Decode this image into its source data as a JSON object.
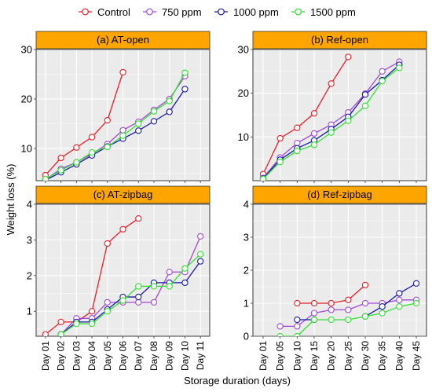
{
  "figure": {
    "xlabel": "Storage duration (days)",
    "ylabel": "Weight loss (%)"
  },
  "legend": {
    "placement": "top",
    "items": [
      {
        "name": "Control",
        "color": "#e8202a"
      },
      {
        "name": "750 ppm",
        "color": "#a24ad6"
      },
      {
        "name": "1000 ppm",
        "color": "#1a1aa8"
      },
      {
        "name": "1500 ppm",
        "color": "#33e033"
      }
    ]
  },
  "chart_data": [
    {
      "type": "line",
      "title": "(a) AT-open",
      "categories": [
        "Day 01",
        "Day 02",
        "Day 03",
        "Day 04",
        "Day 05",
        "Day 06",
        "Day 07",
        "Day 08",
        "Day 09",
        "Day 10",
        "Day 11"
      ],
      "ylim": [
        3.5,
        30
      ],
      "yticks": [
        10,
        20,
        30
      ],
      "series": [
        {
          "name": "Control",
          "values": [
            4.6,
            8.1,
            10.2,
            12.3,
            15.7,
            25.4,
            null,
            null,
            null,
            null,
            null
          ]
        },
        {
          "name": "750 ppm",
          "values": [
            3.7,
            5.9,
            7.2,
            8.9,
            10.9,
            13.7,
            15.4,
            17.8,
            20.0,
            24.6,
            null
          ]
        },
        {
          "name": "1000 ppm",
          "values": [
            3.6,
            5.2,
            6.8,
            8.6,
            10.4,
            12.0,
            13.6,
            15.5,
            17.4,
            22.0,
            null
          ]
        },
        {
          "name": "1500 ppm",
          "values": [
            3.8,
            5.6,
            7.2,
            9.2,
            10.3,
            12.6,
            15.0,
            17.5,
            19.6,
            25.3,
            null
          ]
        }
      ],
      "grid": true
    },
    {
      "type": "line",
      "title": "(b) Ref-open",
      "categories": [
        "Day 01",
        "Day 05",
        "Day 10",
        "Day 15",
        "Day 20",
        "Day 25",
        "Day 30",
        "Day 35",
        "Day 40",
        "Day 45"
      ],
      "ylim": [
        0,
        30
      ],
      "yticks": [
        10,
        20,
        30
      ],
      "series": [
        {
          "name": "Control",
          "values": [
            1.5,
            9.7,
            12.1,
            15.4,
            22.2,
            28.3,
            null,
            null,
            null,
            null
          ]
        },
        {
          "name": "750 ppm",
          "values": [
            0.6,
            5.3,
            8.6,
            10.8,
            12.8,
            15.6,
            19.9,
            25.0,
            27.2,
            null
          ]
        },
        {
          "name": "1000 ppm",
          "values": [
            0.5,
            4.8,
            7.4,
            9.2,
            11.8,
            14.6,
            19.7,
            23.0,
            26.5,
            null
          ]
        },
        {
          "name": "1500 ppm",
          "values": [
            0.4,
            4.3,
            6.8,
            8.2,
            11.0,
            13.7,
            17.1,
            22.8,
            25.8,
            null
          ]
        }
      ],
      "grid": true
    },
    {
      "type": "line",
      "title": "(c) AT-zipbag",
      "categories": [
        "Day 01",
        "Day 02",
        "Day 03",
        "Day 04",
        "Day 05",
        "Day 06",
        "Day 07",
        "Day 08",
        "Day 09",
        "Day 10",
        "Day 11"
      ],
      "ylim": [
        0.3,
        4
      ],
      "yticks": [
        1,
        2,
        3,
        4
      ],
      "series": [
        {
          "name": "Control",
          "values": [
            0.35,
            0.7,
            0.7,
            1.0,
            2.9,
            3.3,
            3.6,
            null,
            null,
            null,
            null
          ]
        },
        {
          "name": "750 ppm",
          "values": [
            null,
            0.35,
            0.8,
            0.8,
            1.25,
            1.25,
            1.25,
            1.25,
            2.1,
            2.1,
            3.1
          ]
        },
        {
          "name": "1000 ppm",
          "values": [
            null,
            0.35,
            0.7,
            0.7,
            1.05,
            1.4,
            1.4,
            1.8,
            1.8,
            1.8,
            2.4
          ]
        },
        {
          "name": "1500 ppm",
          "values": [
            null,
            0.35,
            0.65,
            0.65,
            1.0,
            1.3,
            1.7,
            1.7,
            1.7,
            2.2,
            2.6
          ]
        }
      ],
      "grid": true
    },
    {
      "type": "line",
      "title": "(d) Ref-zipbag",
      "categories": [
        "Day 01",
        "Day 05",
        "Day 10",
        "Day 15",
        "Day 20",
        "Day 25",
        "Day 30",
        "Day 35",
        "Day 40",
        "Day 45"
      ],
      "ylim": [
        0,
        4
      ],
      "yticks": [
        0,
        1,
        2,
        3,
        4
      ],
      "series": [
        {
          "name": "Control",
          "values": [
            null,
            null,
            1.0,
            1.0,
            1.0,
            1.1,
            1.55,
            null,
            null,
            null
          ]
        },
        {
          "name": "750 ppm",
          "values": [
            null,
            0.3,
            0.3,
            0.7,
            0.8,
            0.8,
            1.0,
            1.0,
            1.1,
            1.1
          ]
        },
        {
          "name": "1000 ppm",
          "values": [
            null,
            null,
            0.5,
            0.5,
            null,
            null,
            0.6,
            0.9,
            1.3,
            1.6
          ]
        },
        {
          "name": "1500 ppm",
          "values": [
            null,
            0.0,
            0.0,
            0.5,
            0.5,
            0.5,
            0.6,
            0.7,
            0.9,
            1.0
          ]
        }
      ],
      "grid": true
    }
  ]
}
